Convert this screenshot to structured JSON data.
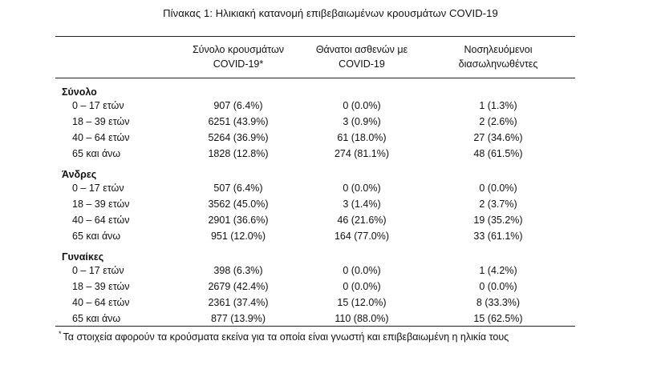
{
  "caption": "Πίνακας 1: Ηλικιακή κατανομή επιβεβαιωμένων κρουσμάτων COVID-19",
  "headers": [
    "Σύνολο κρουσμάτων COVID-19*",
    "Θάνατοι ασθενών με COVID-19",
    "Νοσηλευόμενοι διασωληνωθέντες"
  ],
  "header_lines": [
    [
      "Σύνολο κρουσμάτων",
      "COVID-19*"
    ],
    [
      "Θάνατοι ασθενών με",
      "COVID-19"
    ],
    [
      "Νοσηλευόμενοι",
      "διασωληνωθέντες"
    ]
  ],
  "groups": [
    {
      "label": "Σύνολο",
      "rows": [
        {
          "age": "0 – 17 ετών",
          "cases": "907 (6.4%)",
          "deaths": "0 (0.0%)",
          "intubated": "1 (1.3%)"
        },
        {
          "age": "18 – 39 ετών",
          "cases": "6251 (43.9%)",
          "deaths": "3 (0.9%)",
          "intubated": "2 (2.6%)"
        },
        {
          "age": "40 – 64 ετών",
          "cases": "5264 (36.9%)",
          "deaths": "61 (18.0%)",
          "intubated": "27 (34.6%)"
        },
        {
          "age": "65 και άνω",
          "cases": "1828 (12.8%)",
          "deaths": "274 (81.1%)",
          "intubated": "48 (61.5%)"
        }
      ]
    },
    {
      "label": "Άνδρες",
      "rows": [
        {
          "age": "0 – 17 ετών",
          "cases": "507 (6.4%)",
          "deaths": "0 (0.0%)",
          "intubated": "0 (0.0%)"
        },
        {
          "age": "18 – 39 ετών",
          "cases": "3562 (45.0%)",
          "deaths": "3 (1.4%)",
          "intubated": "2 (3.7%)"
        },
        {
          "age": "40 – 64 ετών",
          "cases": "2901 (36.6%)",
          "deaths": "46 (21.6%)",
          "intubated": "19 (35.2%)"
        },
        {
          "age": "65 και άνω",
          "cases": "951 (12.0%)",
          "deaths": "164 (77.0%)",
          "intubated": "33 (61.1%)"
        }
      ]
    },
    {
      "label": "Γυναίκες",
      "rows": [
        {
          "age": "0 – 17 ετών",
          "cases": "398 (6.3%)",
          "deaths": "0 (0.0%)",
          "intubated": "1 (4.2%)"
        },
        {
          "age": "18 – 39 ετών",
          "cases": "2679 (42.4%)",
          "deaths": "0 (0.0%)",
          "intubated": "0 (0.0%)"
        },
        {
          "age": "40 – 64 ετών",
          "cases": "2361 (37.4%)",
          "deaths": "15 (12.0%)",
          "intubated": "8 (33.3%)"
        },
        {
          "age": "65 και άνω",
          "cases": "877 (13.9%)",
          "deaths": "110 (88.0%)",
          "intubated": "15 (62.5%)"
        }
      ]
    }
  ],
  "footnote": {
    "marker": "*",
    "text": "Τα στοιχεία αφορούν τα κρούσματα εκείνα για τα οποία είναι γνωστή και επιβεβαιωμένη η ηλικία τους"
  }
}
